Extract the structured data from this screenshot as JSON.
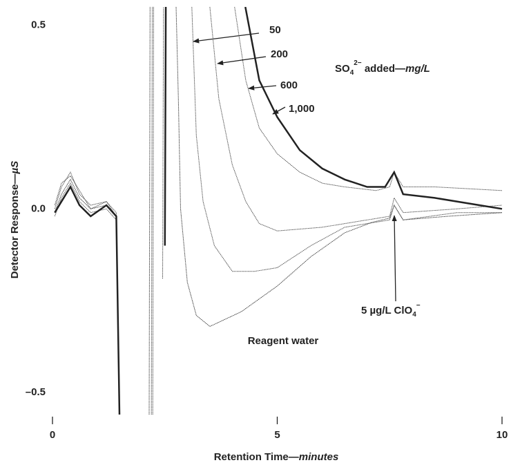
{
  "chart_data": {
    "type": "line",
    "y_label": [
      "Detector Response—",
      "µS"
    ],
    "x_label": [
      "Retention Time—",
      "minutes"
    ],
    "annotations": [
      [
        "SO",
        "4",
        "2−",
        " added—",
        "mg/L"
      ],
      [
        "5 µg/L ClO",
        "4",
        "−"
      ]
    ],
    "xlim": [
      0,
      10
    ],
    "xticks": [
      0,
      5,
      10
    ],
    "ylim": [
      -0.56,
      0.55
    ],
    "yticks": [
      0.5,
      {
        "value": 0,
        "label": "0.0"
      },
      {
        "value": -0.5,
        "label": "–0.5"
      }
    ],
    "grid": false,
    "series": [
      {
        "name": "Reagent water",
        "color": "#444",
        "line_width": 1,
        "x": [
          0.05,
          0.2,
          0.4,
          0.6,
          0.85,
          1.2,
          1.42,
          1.49,
          null,
          2.15,
          2.17,
          null,
          2.75,
          2.8,
          2.85,
          3.0,
          3.2,
          3.5,
          4.2,
          5.0,
          5.75,
          6.5,
          7.1,
          7.5,
          7.6,
          7.8,
          8.8,
          10
        ],
        "values": [
          -0.01,
          0.04,
          0.08,
          0.03,
          0.0,
          0.01,
          -0.02,
          -0.56,
          null,
          -0.56,
          0.55,
          null,
          0.55,
          0.3,
          0.0,
          -0.2,
          -0.29,
          -0.32,
          -0.28,
          -0.21,
          -0.13,
          -0.065,
          -0.037,
          -0.025,
          0.01,
          -0.03,
          -0.02,
          -0.01
        ]
      },
      {
        "name": "50",
        "color": "#555",
        "line_width": 1,
        "x": [
          0.05,
          0.2,
          0.4,
          0.6,
          0.85,
          1.2,
          1.42,
          1.49,
          null,
          2.2,
          2.22,
          null,
          3.1,
          3.2,
          3.35,
          3.6,
          4.0,
          4.5,
          5.0,
          5.75,
          6.5,
          7.5,
          7.6,
          7.8,
          9.0,
          10
        ],
        "values": [
          0.0,
          0.06,
          0.1,
          0.04,
          0.01,
          0.02,
          -0.01,
          -0.56,
          null,
          -0.56,
          0.55,
          null,
          0.55,
          0.2,
          0.02,
          -0.1,
          -0.17,
          -0.17,
          -0.16,
          -0.1,
          -0.05,
          -0.03,
          0.01,
          -0.03,
          -0.01,
          -0.01
        ]
      },
      {
        "name": "200",
        "color": "#555",
        "line_width": 1,
        "x": [
          0.05,
          0.2,
          0.4,
          0.6,
          0.85,
          1.2,
          1.42,
          1.49,
          null,
          2.23,
          2.25,
          null,
          3.5,
          3.7,
          4.0,
          4.3,
          4.6,
          5.0,
          6.0,
          7.0,
          7.5,
          7.6,
          7.8,
          9.0,
          10
        ],
        "values": [
          -0.02,
          0.03,
          0.07,
          0.02,
          -0.01,
          0.0,
          -0.03,
          -0.56,
          null,
          -0.56,
          0.55,
          null,
          0.55,
          0.3,
          0.12,
          0.02,
          -0.04,
          -0.06,
          -0.05,
          -0.03,
          -0.02,
          0.03,
          -0.01,
          0.0,
          0.01
        ]
      },
      {
        "name": "600",
        "color": "#555",
        "line_width": 1,
        "x": [
          0.05,
          0.2,
          0.4,
          0.6,
          0.85,
          1.2,
          1.42,
          1.49,
          null,
          2.45,
          2.47,
          null,
          4.05,
          4.3,
          4.6,
          5.0,
          5.5,
          6.0,
          6.5,
          7.2,
          7.5,
          7.6,
          7.8,
          8.5,
          10
        ],
        "values": [
          0.01,
          0.07,
          0.09,
          0.05,
          0.0,
          0.02,
          -0.02,
          -0.56,
          null,
          -0.19,
          0.55,
          null,
          0.55,
          0.35,
          0.22,
          0.15,
          0.1,
          0.07,
          0.06,
          0.05,
          0.06,
          0.1,
          0.06,
          0.06,
          0.05
        ]
      },
      {
        "name": "1,000",
        "color": "#222",
        "line_width": 2.5,
        "x": [
          0.05,
          0.2,
          0.4,
          0.6,
          0.85,
          1.2,
          1.42,
          1.49,
          null,
          2.5,
          2.52,
          null,
          4.29,
          4.6,
          5.0,
          5.5,
          6.0,
          6.5,
          7.0,
          7.4,
          7.6,
          7.8,
          8.5,
          9.5,
          10
        ],
        "values": [
          -0.01,
          0.02,
          0.06,
          0.01,
          -0.02,
          0.01,
          -0.02,
          -0.56,
          null,
          -0.1,
          0.55,
          null,
          0.55,
          0.35,
          0.25,
          0.16,
          0.11,
          0.08,
          0.06,
          0.06,
          0.1,
          0.04,
          0.03,
          0.01,
          0.0
        ]
      }
    ]
  }
}
